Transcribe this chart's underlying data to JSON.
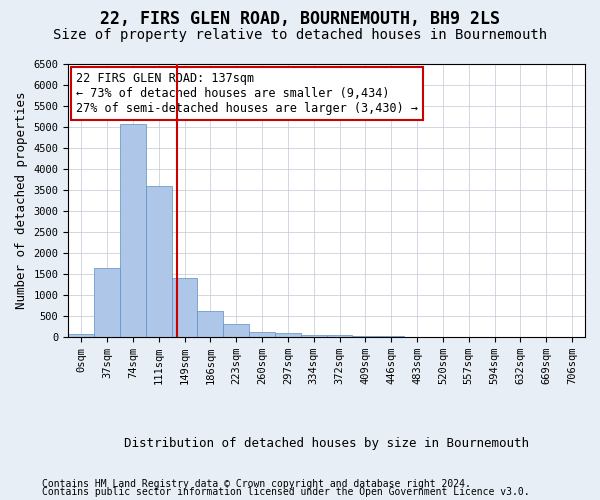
{
  "title": "22, FIRS GLEN ROAD, BOURNEMOUTH, BH9 2LS",
  "subtitle": "Size of property relative to detached houses in Bournemouth",
  "xlabel": "Distribution of detached houses by size in Bournemouth",
  "ylabel": "Number of detached properties",
  "bar_values": [
    75,
    1650,
    5080,
    3600,
    1400,
    610,
    300,
    130,
    100,
    55,
    40,
    30,
    20,
    10,
    5,
    5,
    5,
    5,
    5,
    5
  ],
  "bin_labels": [
    "0sqm",
    "37sqm",
    "74sqm",
    "111sqm",
    "149sqm",
    "186sqm",
    "223sqm",
    "260sqm",
    "297sqm",
    "334sqm",
    "372sqm",
    "409sqm",
    "446sqm",
    "483sqm",
    "520sqm",
    "557sqm",
    "594sqm",
    "632sqm",
    "669sqm",
    "706sqm"
  ],
  "bar_color": "#aec6e8",
  "bar_edge_color": "#5a8fc2",
  "vline_x": 3.72,
  "vline_color": "#cc0000",
  "annotation_text": "22 FIRS GLEN ROAD: 137sqm\n← 73% of detached houses are smaller (9,434)\n27% of semi-detached houses are larger (3,430) →",
  "annotation_box_color": "#cc0000",
  "ylim": [
    0,
    6500
  ],
  "yticks": [
    0,
    500,
    1000,
    1500,
    2000,
    2500,
    3000,
    3500,
    4000,
    4500,
    5000,
    5500,
    6000,
    6500
  ],
  "footnote1": "Contains HM Land Registry data © Crown copyright and database right 2024.",
  "footnote2": "Contains public sector information licensed under the Open Government Licence v3.0.",
  "background_color": "#e8eef5",
  "plot_bg_color": "#ffffff",
  "title_fontsize": 12,
  "subtitle_fontsize": 10,
  "axis_label_fontsize": 9,
  "tick_fontsize": 7.5,
  "annotation_fontsize": 8.5,
  "footnote_fontsize": 7
}
